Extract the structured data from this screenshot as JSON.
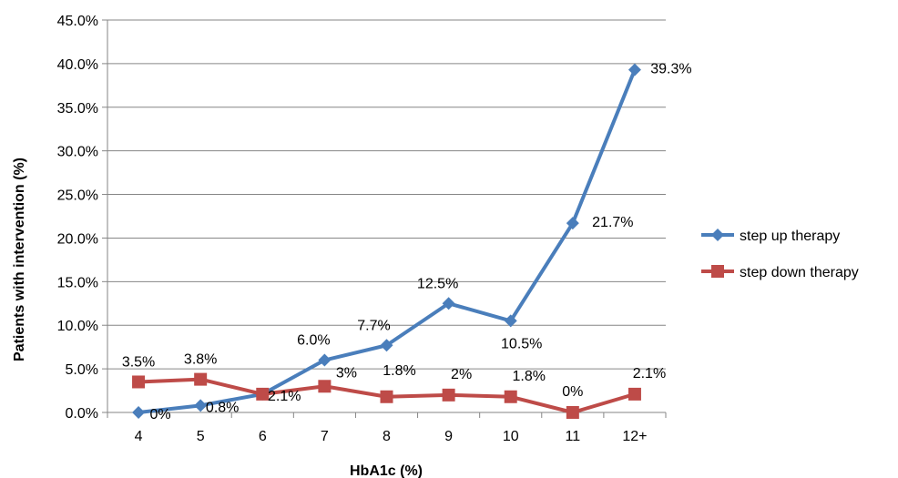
{
  "chart_data": {
    "type": "line",
    "title": "",
    "xlabel": "HbA1c (%)",
    "ylabel": "Patients with intervention (%)",
    "categories": [
      "4",
      "5",
      "6",
      "7",
      "8",
      "9",
      "10",
      "11",
      "12+"
    ],
    "ylim": [
      0,
      45
    ],
    "ytick_step": 5,
    "ytick_labels": [
      "0.0%",
      "5.0%",
      "10.0%",
      "15.0%",
      "20.0%",
      "25.0%",
      "30.0%",
      "35.0%",
      "40.0%",
      "45.0%"
    ],
    "grid": true,
    "legend_position": "right",
    "series": [
      {
        "name": "step up therapy",
        "color": "#4A7EBB",
        "marker": "diamond",
        "values": [
          0.0,
          0.8,
          2.1,
          6.0,
          7.7,
          12.5,
          10.5,
          21.7,
          39.3
        ],
        "labels": [
          "0%",
          "0.8%",
          "2.1%",
          "6.0%",
          "7.7%",
          "12.5%",
          "10.5%",
          "21.7%",
          "39.3%"
        ]
      },
      {
        "name": "step down therapy",
        "color": "#BE4B48",
        "marker": "square",
        "values": [
          3.5,
          3.8,
          2.1,
          3.0,
          1.8,
          2.0,
          1.8,
          0.0,
          2.1
        ],
        "labels": [
          "3.5%",
          "3.8%",
          "",
          "3%",
          "1.8%",
          "2%",
          "1.8%",
          "0%",
          "2.1%"
        ]
      }
    ]
  }
}
